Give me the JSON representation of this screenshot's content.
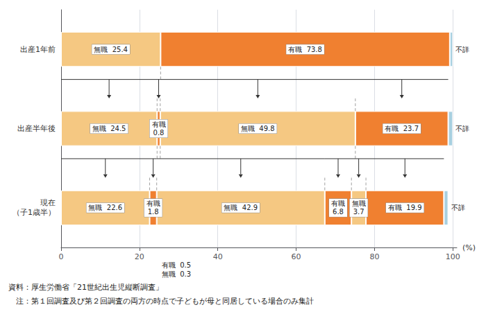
{
  "chart_data": {
    "type": "bar",
    "orientation": "horizontal",
    "stacked": true,
    "data_labels": true,
    "grid": true,
    "categories": [
      "出産1年前",
      "出産半年後",
      "現在\n（子1歳半）"
    ],
    "xlabel": "(%)",
    "xlim": [
      0,
      101
    ],
    "xticks": [
      0,
      20,
      40,
      60,
      80,
      100
    ],
    "series": [
      {
        "color": "#f5c882",
        "values": [
          25.4,
          null,
          null
        ],
        "value_labels": [
          "無職  25.4",
          null,
          null
        ]
      },
      {
        "color": "#f08030",
        "values": [
          73.8,
          null,
          null
        ],
        "value_labels": [
          "有職  73.8",
          null,
          null
        ]
      },
      {
        "color": "#a8d0e0",
        "values": [
          0.8,
          null,
          null
        ],
        "value_labels": [
          "不詳",
          null,
          null
        ]
      },
      {
        "color": "#f5c882",
        "values": [
          null,
          24.5,
          null
        ],
        "value_labels": [
          null,
          "無職  24.5",
          null
        ]
      },
      {
        "color": "#f08030",
        "values": [
          null,
          0.8,
          null
        ],
        "value_labels": [
          null,
          "有職\n0.8",
          null
        ]
      },
      {
        "color": "#f5c882",
        "values": [
          null,
          49.8,
          null
        ],
        "value_labels": [
          null,
          "無職  49.8",
          null
        ]
      },
      {
        "color": "#f08030",
        "values": [
          null,
          23.7,
          null
        ],
        "value_labels": [
          null,
          "有職  23.7",
          null
        ]
      },
      {
        "color": "#a8d0e0",
        "values": [
          null,
          1.2,
          null
        ],
        "value_labels": [
          null,
          "不詳",
          null
        ]
      },
      {
        "color": "#f5c882",
        "values": [
          null,
          null,
          22.6
        ],
        "value_labels": [
          null,
          null,
          "無職  22.6"
        ]
      },
      {
        "color": "#f08030",
        "values": [
          null,
          null,
          1.8
        ],
        "value_labels": [
          null,
          null,
          "有職\n1.8"
        ]
      },
      {
        "color": "#f5c882",
        "values": [
          null,
          null,
          42.9
        ],
        "value_labels": [
          null,
          null,
          "無職  42.9"
        ]
      },
      {
        "color": "#f08030",
        "values": [
          null,
          null,
          6.8
        ],
        "value_labels": [
          null,
          null,
          "有職\n6.8"
        ]
      },
      {
        "color": "#f5c882",
        "values": [
          null,
          null,
          3.7
        ],
        "value_labels": [
          null,
          null,
          "無職\n3.7"
        ]
      },
      {
        "color": "#f08030",
        "values": [
          null,
          null,
          19.9
        ],
        "value_labels": [
          null,
          null,
          "有職  19.9"
        ]
      },
      {
        "color": "#a8d0e0",
        "values": [
          null,
          null,
          1.1
        ],
        "value_labels": [
          null,
          null,
          "不詳"
        ]
      }
    ],
    "annotations": [
      "有職  0.5",
      "無職  0.3"
    ],
    "notes": [
      "資料：厚生労働省「21世紀出生児縦断調査」",
      "　注：第１回調査及び第２回調査の両方の時点で子どもが母と同居している場合のみ集計"
    ]
  }
}
